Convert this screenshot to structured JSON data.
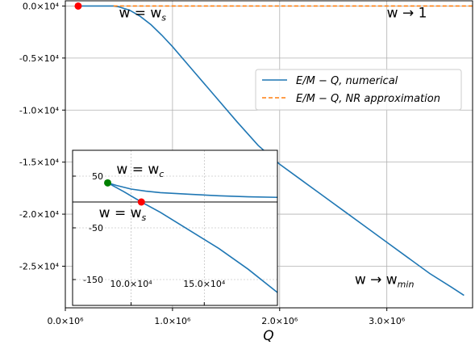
{
  "chart_data": [
    {
      "type": "line",
      "xlabel": "Q",
      "ylabel": "",
      "xlim": [
        0,
        3800000
      ],
      "ylim": [
        -29000,
        500
      ],
      "grid": true,
      "legend_position": "center-right",
      "x_ticks": [
        {
          "value": 0,
          "label": "0.0×10⁶"
        },
        {
          "value": 1000000,
          "label": "1.0×10⁶"
        },
        {
          "value": 2000000,
          "label": "2.0×10⁶"
        },
        {
          "value": 3000000,
          "label": "3.0×10⁶"
        }
      ],
      "y_ticks": [
        {
          "value": 0,
          "label": "0.0×10⁴"
        },
        {
          "value": -5000,
          "label": "-0.5×10⁴"
        },
        {
          "value": -10000,
          "label": "-1.0×10⁴"
        },
        {
          "value": -15000,
          "label": "-1.5×10⁴"
        },
        {
          "value": -20000,
          "label": "-2.0×10⁴"
        },
        {
          "value": -25000,
          "label": "-2.5×10⁴"
        }
      ],
      "series": [
        {
          "name": "E/M − Q,  numerical",
          "color": "#1f77b4",
          "style": "solid",
          "x": [
            120000,
            200000,
            300000,
            400000,
            450000,
            500000,
            600000,
            700000,
            800000,
            900000,
            1000000,
            1200000,
            1400000,
            1600000,
            1800000,
            2000000,
            2200000,
            2400000,
            2600000,
            2800000,
            3000000,
            3200000,
            3400000,
            3600000,
            3720000
          ],
          "y": [
            0,
            0,
            0,
            0,
            0,
            -80,
            -400,
            -1000,
            -1800,
            -2800,
            -3900,
            -6300,
            -8700,
            -11100,
            -13400,
            -15200,
            -16700,
            -18200,
            -19700,
            -21200,
            -22700,
            -24200,
            -25700,
            -27000,
            -27800
          ]
        },
        {
          "name": "E/M − Q,  NR approximation",
          "color": "#ff7f0e",
          "style": "dashed",
          "x": [
            450000,
            3800000
          ],
          "y": [
            0,
            0
          ]
        }
      ],
      "markers": [
        {
          "x": 120000,
          "y": 0,
          "color": "#ff0000"
        }
      ],
      "annotations": [
        {
          "text": "w = w",
          "sub": "s",
          "x": 500000,
          "y": -1100
        },
        {
          "text": "w → 1",
          "sub": "",
          "x": 3000000,
          "y": -1100
        },
        {
          "text": "w → w",
          "sub": "min",
          "x": 2700000,
          "y": -26700
        }
      ]
    },
    {
      "type": "line",
      "placement": "inset-lower-left",
      "xlim": [
        60000,
        200000
      ],
      "ylim": [
        -200,
        100
      ],
      "grid": true,
      "x_ticks": [
        {
          "value": 100000,
          "label": "10.0×10⁴"
        },
        {
          "value": 150000,
          "label": "15.0×10⁴"
        }
      ],
      "y_ticks": [
        {
          "value": 50,
          "label": "50"
        },
        {
          "value": -50,
          "label": "-50"
        },
        {
          "value": -150,
          "label": "-150"
        }
      ],
      "hline": 0,
      "series": [
        {
          "name": "upper branch",
          "color": "#1f77b4",
          "x": [
            84000,
            90000,
            100000,
            110000,
            120000,
            140000,
            160000,
            180000,
            200000
          ],
          "y": [
            37,
            32,
            25,
            21,
            18,
            15,
            12,
            10,
            9
          ]
        },
        {
          "name": "lower branch",
          "color": "#1f77b4",
          "x": [
            84000,
            95000,
            107000,
            120000,
            140000,
            160000,
            180000,
            200000
          ],
          "y": [
            37,
            20,
            0,
            -20,
            -55,
            -90,
            -130,
            -175
          ]
        }
      ],
      "markers": [
        {
          "x": 84000,
          "y": 37,
          "color": "#008000"
        },
        {
          "x": 107000,
          "y": 0,
          "color": "#ff0000"
        }
      ],
      "annotations": [
        {
          "text": "w = w",
          "sub": "c",
          "x": 90000,
          "y": 55
        },
        {
          "text": "w = w",
          "sub": "s",
          "x": 78000,
          "y": -30
        }
      ]
    }
  ]
}
